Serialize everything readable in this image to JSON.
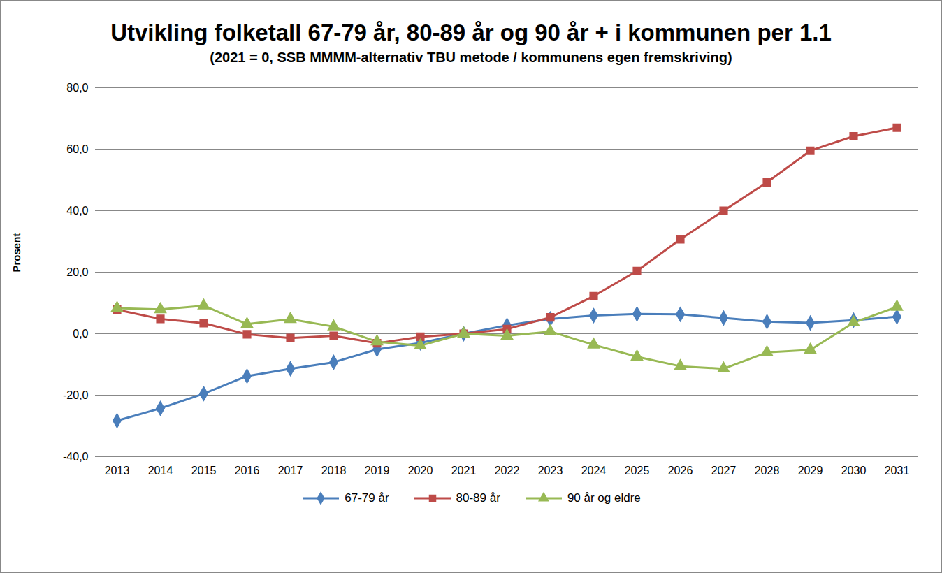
{
  "chart_data": {
    "type": "line",
    "title": "Utvikling folketall 67-79 år, 80-89 år og 90 år + i kommunen per 1.1",
    "subtitle": "(2021 = 0, SSB MMMM-alternativ TBU metode / kommunens egen fremskriving)",
    "y_label": "Prosent",
    "categories": [
      "2013",
      "2014",
      "2015",
      "2016",
      "2017",
      "2018",
      "2019",
      "2020",
      "2021",
      "2022",
      "2023",
      "2024",
      "2025",
      "2026",
      "2027",
      "2028",
      "2029",
      "2030",
      "2031"
    ],
    "series": [
      {
        "name": "67-79 år",
        "color": "#4a7ebb",
        "marker": "diamond",
        "values": [
          -28.3,
          -24.3,
          -19.5,
          -13.8,
          -11.4,
          -9.3,
          -5.1,
          -3.0,
          0,
          2.7,
          4.8,
          5.9,
          6.4,
          6.3,
          5.1,
          3.9,
          3.5,
          4.4,
          5.5
        ]
      },
      {
        "name": "80-89 år",
        "color": "#be4b48",
        "marker": "square",
        "values": [
          7.8,
          4.8,
          3.4,
          -0.2,
          -1.4,
          -0.7,
          -3.1,
          -1.0,
          0,
          1.5,
          5.3,
          12.2,
          20.4,
          30.7,
          40.0,
          49.2,
          59.5,
          64.2,
          67.0
        ]
      },
      {
        "name": "90 år og eldre",
        "color": "#98b954",
        "marker": "triangle",
        "values": [
          8.3,
          7.9,
          9.1,
          3.1,
          4.7,
          2.3,
          -2.6,
          -3.9,
          0,
          -0.7,
          0.7,
          -3.6,
          -7.5,
          -10.6,
          -11.4,
          -6.1,
          -5.3,
          3.6,
          8.7
        ]
      }
    ],
    "ylim": [
      -40,
      80
    ],
    "yticks": [
      {
        "value": -40,
        "label": "-40,0"
      },
      {
        "value": -20,
        "label": "-20,0"
      },
      {
        "value": 0,
        "label": "0,0"
      },
      {
        "value": 20,
        "label": "20,0"
      },
      {
        "value": 40,
        "label": "40,0"
      },
      {
        "value": 60,
        "label": "60,0"
      },
      {
        "value": 80,
        "label": "80,0"
      }
    ],
    "grid": true,
    "legend": "bottom"
  }
}
